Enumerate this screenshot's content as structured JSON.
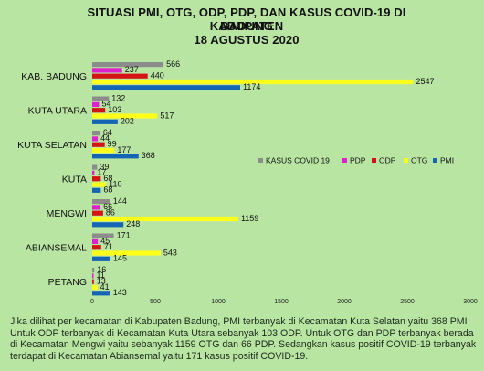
{
  "title_lines": [
    "SITUASI PMI, OTG, ODP, PDP, DAN KASUS COVID-19 DI KABUPATEN",
    "BADUNG",
    "18 AGUSTUS 2020"
  ],
  "caption": "Jika dilihat per kecamatan di Kabupaten Badung, PMI terbanyak di Kecamatan Kuta Selatan yaitu 368 PMI Untuk ODP terbanyak di Kecamatan Kuta Utara sebanyak 103 ODP. Untuk OTG dan PDP terbanyak berada di Kecamatan Mengwi yaitu sebanyak 1159 OTG dan 66 PDP. Sedangkan  kasus positif COVID-19 terbanyak terdapat di Kecamatan Abiansemal yaitu 171 kasus positif COVID-19.",
  "chart_data": {
    "type": "bar",
    "orientation": "horizontal",
    "title": "SITUASI PMI, OTG, ODP, PDP, DAN KASUS COVID-19 DI KABUPATEN BADUNG 18 AGUSTUS 2020",
    "categories": [
      "KAB. BADUNG",
      "KUTA UTARA",
      "KUTA SELATAN",
      "KUTA",
      "MENGWI",
      "ABIANSEMAL",
      "PETANG"
    ],
    "series": [
      {
        "name": "KASUS COVID 19",
        "color": "#8c8c8c",
        "values": [
          566,
          132,
          64,
          39,
          144,
          171,
          16
        ]
      },
      {
        "name": "PDP",
        "color": "#e020d0",
        "values": [
          237,
          54,
          44,
          17,
          66,
          45,
          11
        ]
      },
      {
        "name": "ODP",
        "color": "#d41414",
        "values": [
          440,
          103,
          99,
          68,
          86,
          71,
          13
        ]
      },
      {
        "name": "OTG",
        "color": "#ffff1a",
        "values": [
          2547,
          517,
          177,
          110,
          1159,
          543,
          41
        ]
      },
      {
        "name": "PMI",
        "color": "#1466b4",
        "values": [
          1174,
          202,
          368,
          68,
          248,
          145,
          143
        ]
      }
    ],
    "xlim": [
      0,
      3000
    ],
    "xticks": [
      0,
      500,
      1000,
      1500,
      2000,
      2500,
      3000
    ],
    "grid": false,
    "legend": "right"
  }
}
